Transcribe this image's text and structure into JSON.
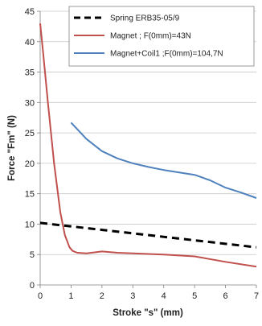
{
  "chart_data": {
    "type": "line",
    "xlabel": "Stroke \"s\" (mm)",
    "ylabel": "Force \"Fm\" (N)",
    "xlim": [
      0,
      7
    ],
    "ylim": [
      0,
      45
    ],
    "x_ticks": [
      0,
      1,
      2,
      3,
      4,
      5,
      6,
      7
    ],
    "y_ticks": [
      0,
      5,
      10,
      15,
      20,
      25,
      30,
      35,
      40,
      45
    ],
    "grid": "horizontal",
    "legend_position": "top-right",
    "series": [
      {
        "name": "Spring ERB35-05/9",
        "color": "#000000",
        "style": "dashed",
        "x": [
          0,
          7
        ],
        "y": [
          10.2,
          6.2
        ]
      },
      {
        "name": "Magnet ; F(0mm)=43N",
        "color": "#c0504d",
        "style": "solid",
        "x": [
          0,
          0.1,
          0.25,
          0.45,
          0.65,
          0.8,
          0.95,
          1.05,
          1.2,
          1.5,
          2.0,
          2.5,
          3.0,
          4.0,
          5.0,
          6.0,
          7.0
        ],
        "y": [
          43,
          38,
          30,
          20,
          12,
          8.2,
          6.2,
          5.6,
          5.3,
          5.2,
          5.5,
          5.3,
          5.2,
          5.0,
          4.7,
          3.8,
          3.0
        ]
      },
      {
        "name": "Magnet+Coil1 ;F(0mm)=104,7N",
        "color": "#4f81bd",
        "style": "solid",
        "x": [
          1.0,
          1.5,
          2.0,
          2.5,
          3.0,
          3.5,
          4.0,
          4.5,
          5.0,
          5.5,
          6.0,
          6.5,
          7.0
        ],
        "y": [
          26.7,
          24.0,
          22.0,
          20.8,
          20.0,
          19.4,
          18.9,
          18.5,
          18.1,
          17.2,
          16.0,
          15.2,
          14.3
        ]
      }
    ]
  }
}
